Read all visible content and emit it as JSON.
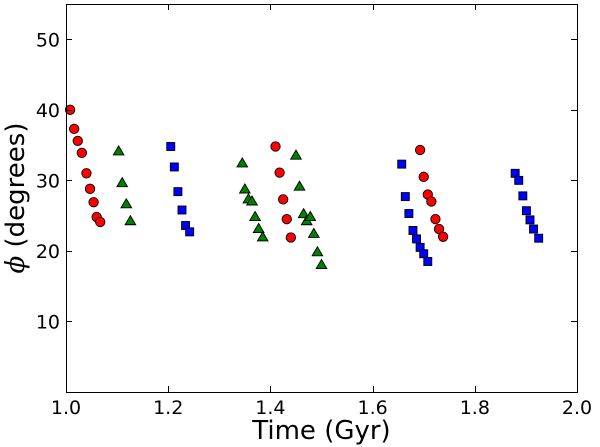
{
  "chart_data": {
    "type": "scatter",
    "title": "",
    "xlabel": "Time (Gyr)",
    "ylabel_symbol": "ϕ",
    "ylabel_text": " (degrees)",
    "xlim": [
      1.0,
      2.0
    ],
    "ylim": [
      0,
      55
    ],
    "xticks": [
      1.0,
      1.2,
      1.4,
      1.6,
      1.8,
      2.0
    ],
    "xtick_labels": [
      "1.0",
      "1.2",
      "1.4",
      "1.6",
      "1.8",
      "2.0"
    ],
    "yticks": [
      10,
      20,
      30,
      40,
      50
    ],
    "ytick_labels": [
      "10",
      "20",
      "30",
      "40",
      "50"
    ],
    "grid": false,
    "legend": false,
    "series": [
      {
        "name": "red circles",
        "marker": "circle",
        "color": "#ff0000",
        "points": [
          [
            1.008,
            40.0
          ],
          [
            1.016,
            37.3
          ],
          [
            1.023,
            35.6
          ],
          [
            1.031,
            33.9
          ],
          [
            1.04,
            31.0
          ],
          [
            1.047,
            28.8
          ],
          [
            1.054,
            26.9
          ],
          [
            1.06,
            24.8
          ],
          [
            1.067,
            24.1
          ],
          [
            1.41,
            34.8
          ],
          [
            1.418,
            31.1
          ],
          [
            1.425,
            27.3
          ],
          [
            1.432,
            24.5
          ],
          [
            1.44,
            21.9
          ],
          [
            1.693,
            34.3
          ],
          [
            1.7,
            30.5
          ],
          [
            1.708,
            28.0
          ],
          [
            1.715,
            27.0
          ],
          [
            1.723,
            24.5
          ],
          [
            1.73,
            23.1
          ],
          [
            1.738,
            22.0
          ]
        ]
      },
      {
        "name": "green triangles",
        "marker": "triangle",
        "color": "#008000",
        "points": [
          [
            1.103,
            34.1
          ],
          [
            1.11,
            29.6
          ],
          [
            1.118,
            26.6
          ],
          [
            1.126,
            24.2
          ],
          [
            1.345,
            32.4
          ],
          [
            1.35,
            28.7
          ],
          [
            1.357,
            27.3
          ],
          [
            1.364,
            27.0
          ],
          [
            1.37,
            24.8
          ],
          [
            1.377,
            23.1
          ],
          [
            1.385,
            21.9
          ],
          [
            1.45,
            33.5
          ],
          [
            1.457,
            29.1
          ],
          [
            1.465,
            25.2
          ],
          [
            1.471,
            24.2
          ],
          [
            1.478,
            24.8
          ],
          [
            1.485,
            22.4
          ],
          [
            1.492,
            19.8
          ],
          [
            1.5,
            18.0
          ]
        ]
      },
      {
        "name": "blue squares",
        "marker": "square",
        "color": "#0000ff",
        "points": [
          [
            1.205,
            34.8
          ],
          [
            1.212,
            31.9
          ],
          [
            1.219,
            28.4
          ],
          [
            1.227,
            25.8
          ],
          [
            1.234,
            23.6
          ],
          [
            1.242,
            22.7
          ],
          [
            1.657,
            32.3
          ],
          [
            1.664,
            27.7
          ],
          [
            1.671,
            25.3
          ],
          [
            1.679,
            22.9
          ],
          [
            1.686,
            21.7
          ],
          [
            1.693,
            20.5
          ],
          [
            1.7,
            19.6
          ],
          [
            1.708,
            18.5
          ],
          [
            1.879,
            31.0
          ],
          [
            1.886,
            30.0
          ],
          [
            1.894,
            27.8
          ],
          [
            1.901,
            25.7
          ],
          [
            1.908,
            24.4
          ],
          [
            1.915,
            23.1
          ],
          [
            1.925,
            21.8
          ]
        ]
      }
    ]
  }
}
